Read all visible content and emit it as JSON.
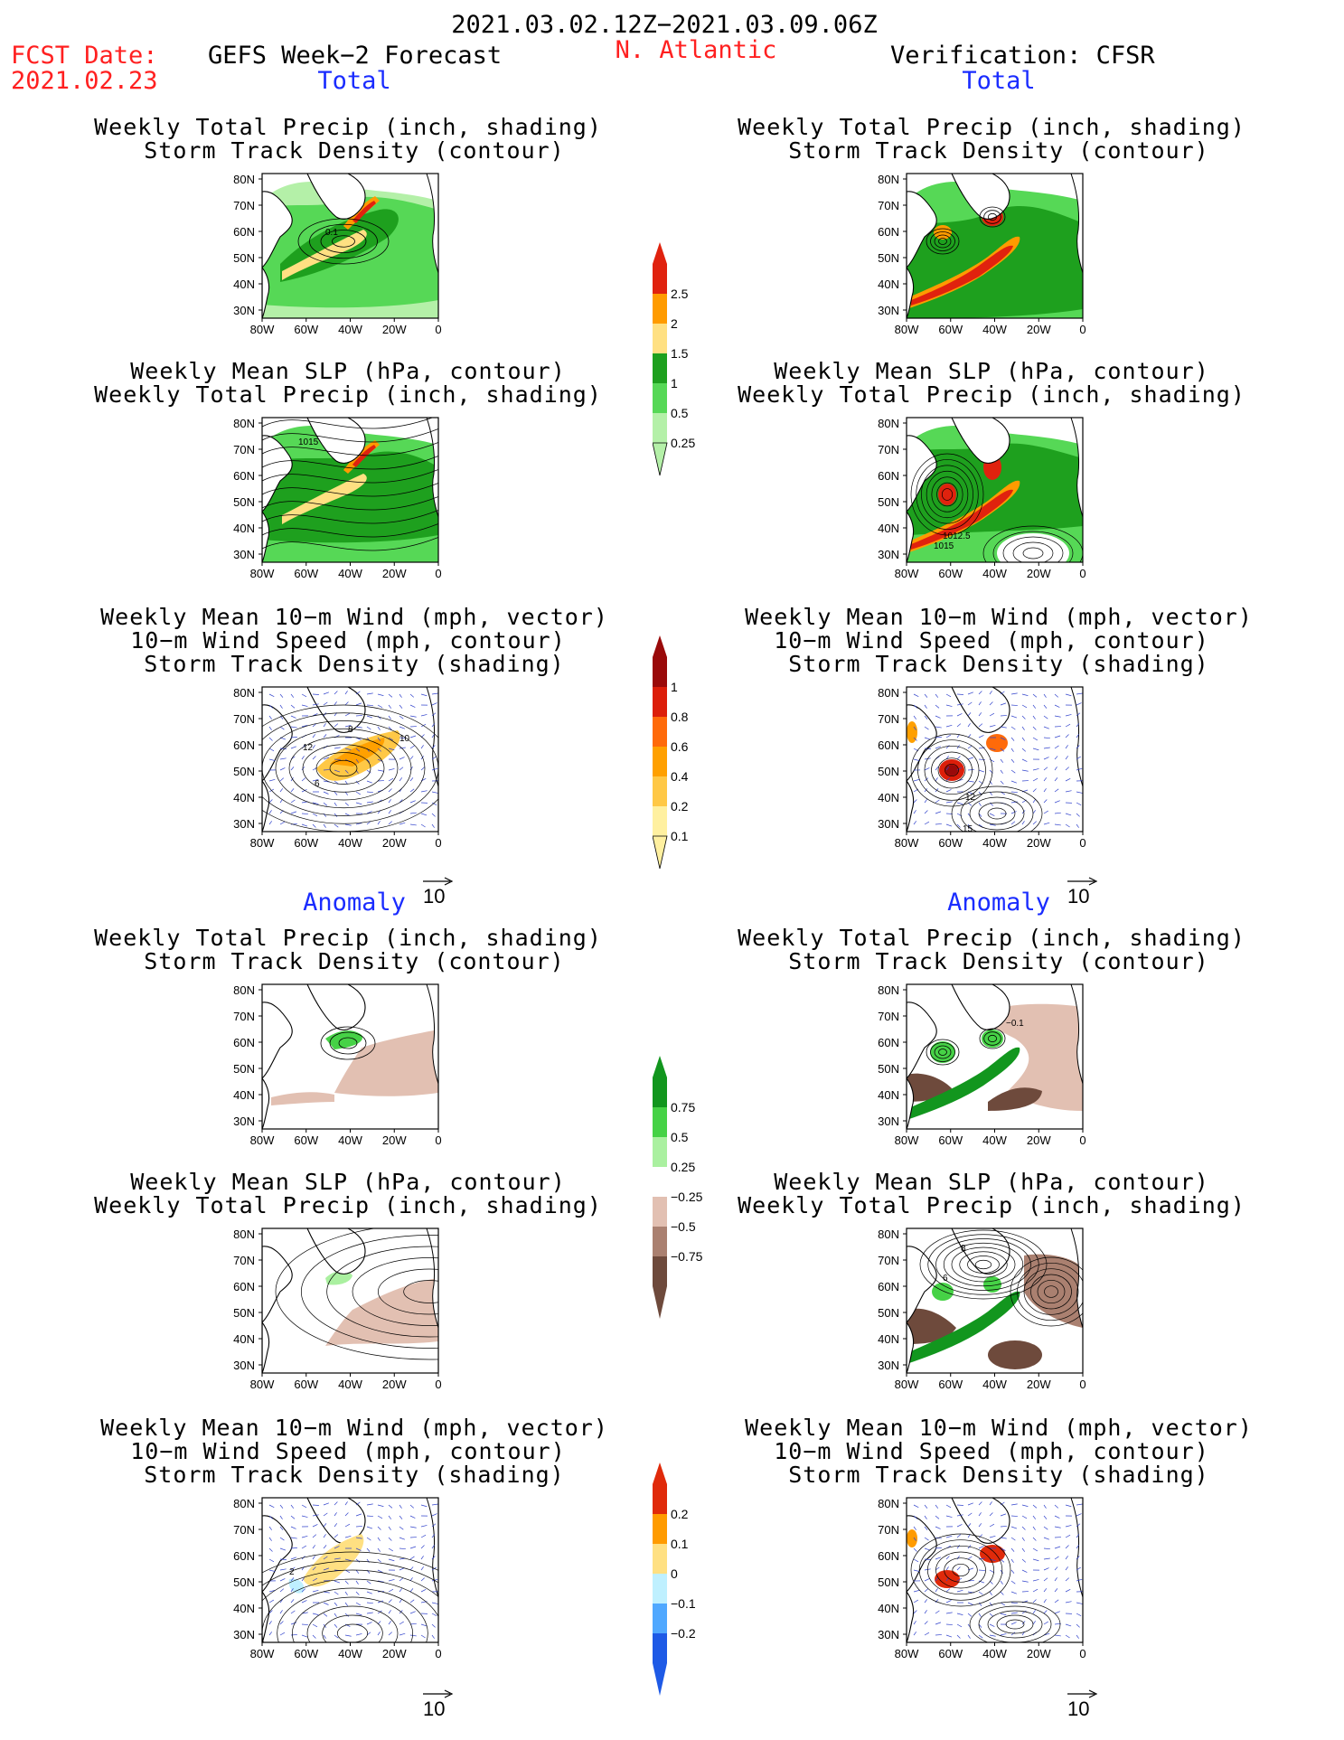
{
  "header": {
    "date_range": "2021.03.02.12Z−2021.03.09.06Z",
    "fcst_label": "FCST Date:",
    "fcst_date": "2021.02.23",
    "left_title": "GEFS Week−2 Forecast",
    "region": "N. Atlantic",
    "right_title": "Verification: CFSR"
  },
  "sections": {
    "total": "Total",
    "anomaly": "Anomaly"
  },
  "panel_titles": {
    "precip_track": [
      "Weekly Total Precip (inch, shading)",
      "Storm Track Density (contour)"
    ],
    "slp_precip": [
      "Weekly Mean SLP (hPa, contour)",
      "Weekly Total Precip (inch, shading)"
    ],
    "wind": [
      "Weekly Mean 10−m Wind (mph, vector)",
      "10−m Wind Speed (mph, contour)",
      "Storm Track Density (shading)"
    ]
  },
  "axes": {
    "lat_labels": [
      "80N",
      "70N",
      "60N",
      "50N",
      "40N",
      "30N"
    ],
    "lon_labels": [
      "80W",
      "60W",
      "40W",
      "20W",
      "0"
    ]
  },
  "vector_ref": "10",
  "colorbars": {
    "precip_total": {
      "labels": [
        "2.5",
        "2",
        "1.5",
        "1",
        "0.5",
        "0.25"
      ],
      "colors": [
        "#e0220e",
        "#ff9b00",
        "#ffe082",
        "#1ea01e",
        "#56d856",
        "#b4f0a8"
      ]
    },
    "track_total": {
      "labels": [
        "1",
        "0.8",
        "0.6",
        "0.4",
        "0.2",
        "0.1"
      ],
      "colors": [
        "#9a0a0a",
        "#dc1e0a",
        "#ff6a0a",
        "#ffa000",
        "#ffc846",
        "#fff0a0"
      ]
    },
    "precip_anom": {
      "labels": [
        "0.75",
        "0.5",
        "0.25",
        "−0.25",
        "−0.5",
        "−0.75"
      ],
      "colors": [
        "#12961e",
        "#46d246",
        "#aaf0a0",
        "#ffffff",
        "#e2c0b2",
        "#aa8070",
        "#6e4a3c"
      ]
    },
    "track_anom": {
      "labels": [
        "0.2",
        "0.1",
        "0",
        "−0.1",
        "−0.2"
      ],
      "colors": [
        "#e02a0a",
        "#ff9b00",
        "#ffe082",
        "#bff0ff",
        "#50a8ff",
        "#1e5ae6"
      ]
    }
  },
  "panel_labels": {
    "gefs_track_total": [
      "0.1"
    ],
    "gefs_slp_total": [
      "1015"
    ],
    "cfsr_slp_total": [
      "1012.5",
      "1015"
    ],
    "gefs_wind_total": [
      "12",
      "8",
      "10",
      "6"
    ],
    "cfsr_wind_total": [
      "12",
      "15"
    ],
    "cfsr_precip_anom": [
      "−0.1"
    ],
    "gefs_wind_anom": [
      "2"
    ],
    "cfsr_slp_anom": [
      "8",
      "6"
    ]
  }
}
